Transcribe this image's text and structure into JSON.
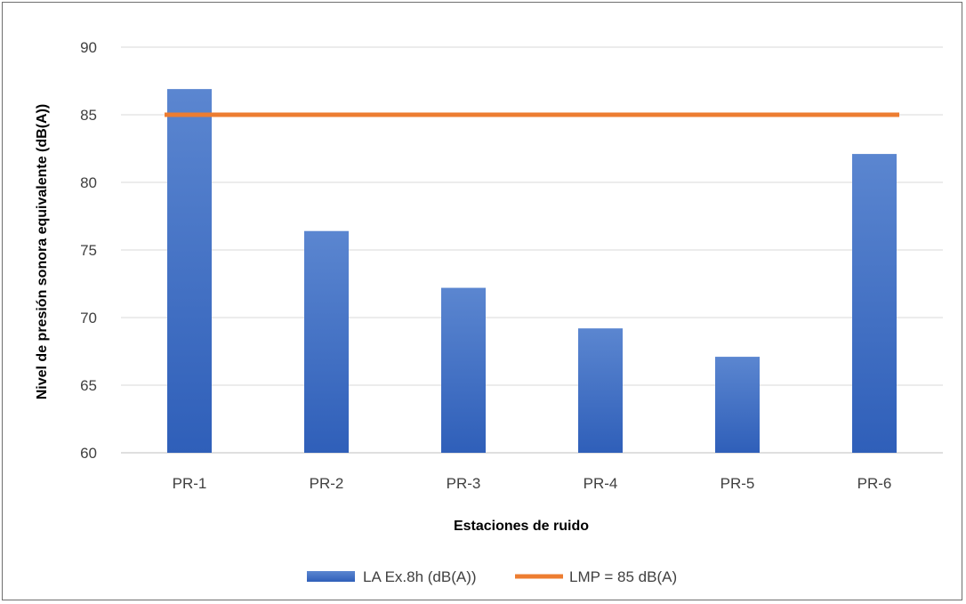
{
  "chart_data": {
    "type": "bar",
    "categories": [
      "PR-1",
      "PR-2",
      "PR-3",
      "PR-4",
      "PR-5",
      "PR-6"
    ],
    "series": [
      {
        "name": "LA Ex.8h (dB(A))",
        "type": "bar",
        "values": [
          86.9,
          76.4,
          72.2,
          69.2,
          67.1,
          82.1
        ],
        "color": "#4472c4"
      },
      {
        "name": "LMP = 85 dB(A)",
        "type": "line",
        "values": [
          85,
          85,
          85,
          85,
          85,
          85
        ],
        "color": "#ed7d31"
      }
    ],
    "title": "",
    "xlabel": "Estaciones de ruido",
    "ylabel": "Nivel de presión sonora equivalente (dB(A))",
    "ylim": [
      60,
      90
    ],
    "yticks": [
      60,
      65,
      70,
      75,
      80,
      85,
      90
    ],
    "grid": true,
    "legend": "bottom"
  }
}
